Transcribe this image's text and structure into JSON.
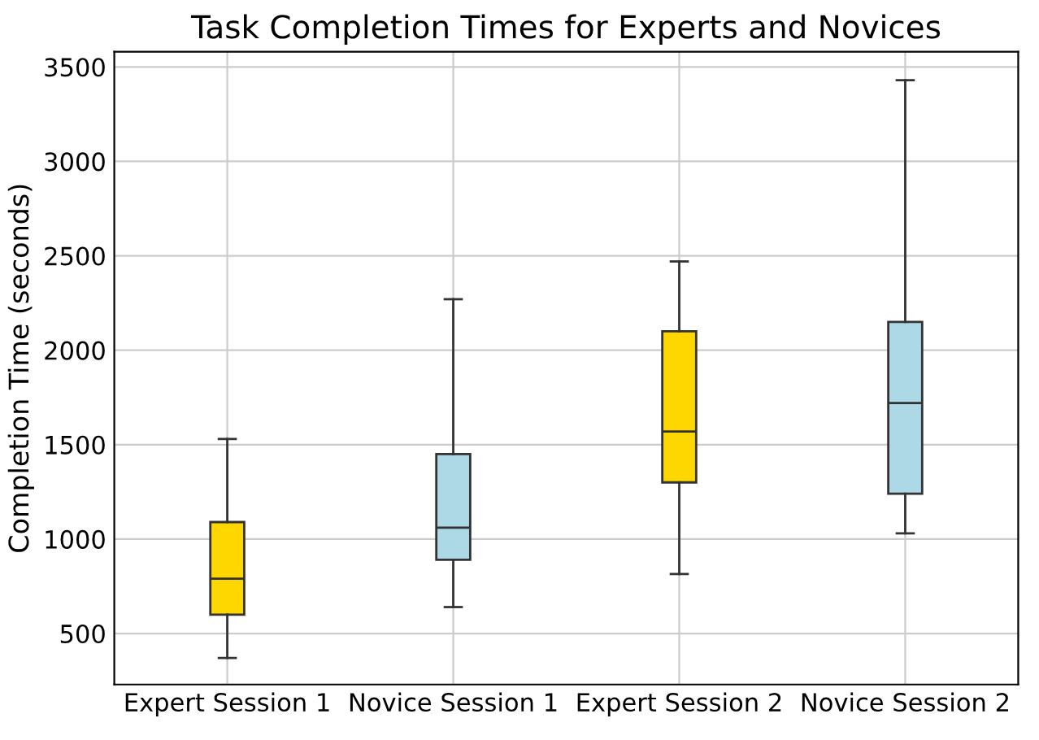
{
  "chart_data": {
    "type": "box",
    "title": "Task Completion Times for Experts and Novices",
    "ylabel": "Completion Time (seconds)",
    "categories": [
      "Expert Session 1",
      "Novice Session 1",
      "Expert Session 2",
      "Novice Session 2"
    ],
    "colors": [
      "#ffd700",
      "#add8e6",
      "#ffd700",
      "#add8e6"
    ],
    "boxes": [
      {
        "low": 370,
        "q1": 600,
        "median": 790,
        "q3": 1090,
        "high": 1530
      },
      {
        "low": 640,
        "q1": 890,
        "median": 1060,
        "q3": 1450,
        "high": 2270
      },
      {
        "low": 815,
        "q1": 1300,
        "median": 1570,
        "q3": 2100,
        "high": 2470
      },
      {
        "low": 1030,
        "q1": 1240,
        "median": 1720,
        "q3": 2150,
        "high": 3430
      }
    ],
    "ylim": [
      230,
      3580
    ],
    "yticks": [
      500,
      1000,
      1500,
      2000,
      2500,
      3000,
      3500
    ],
    "grid": true
  }
}
